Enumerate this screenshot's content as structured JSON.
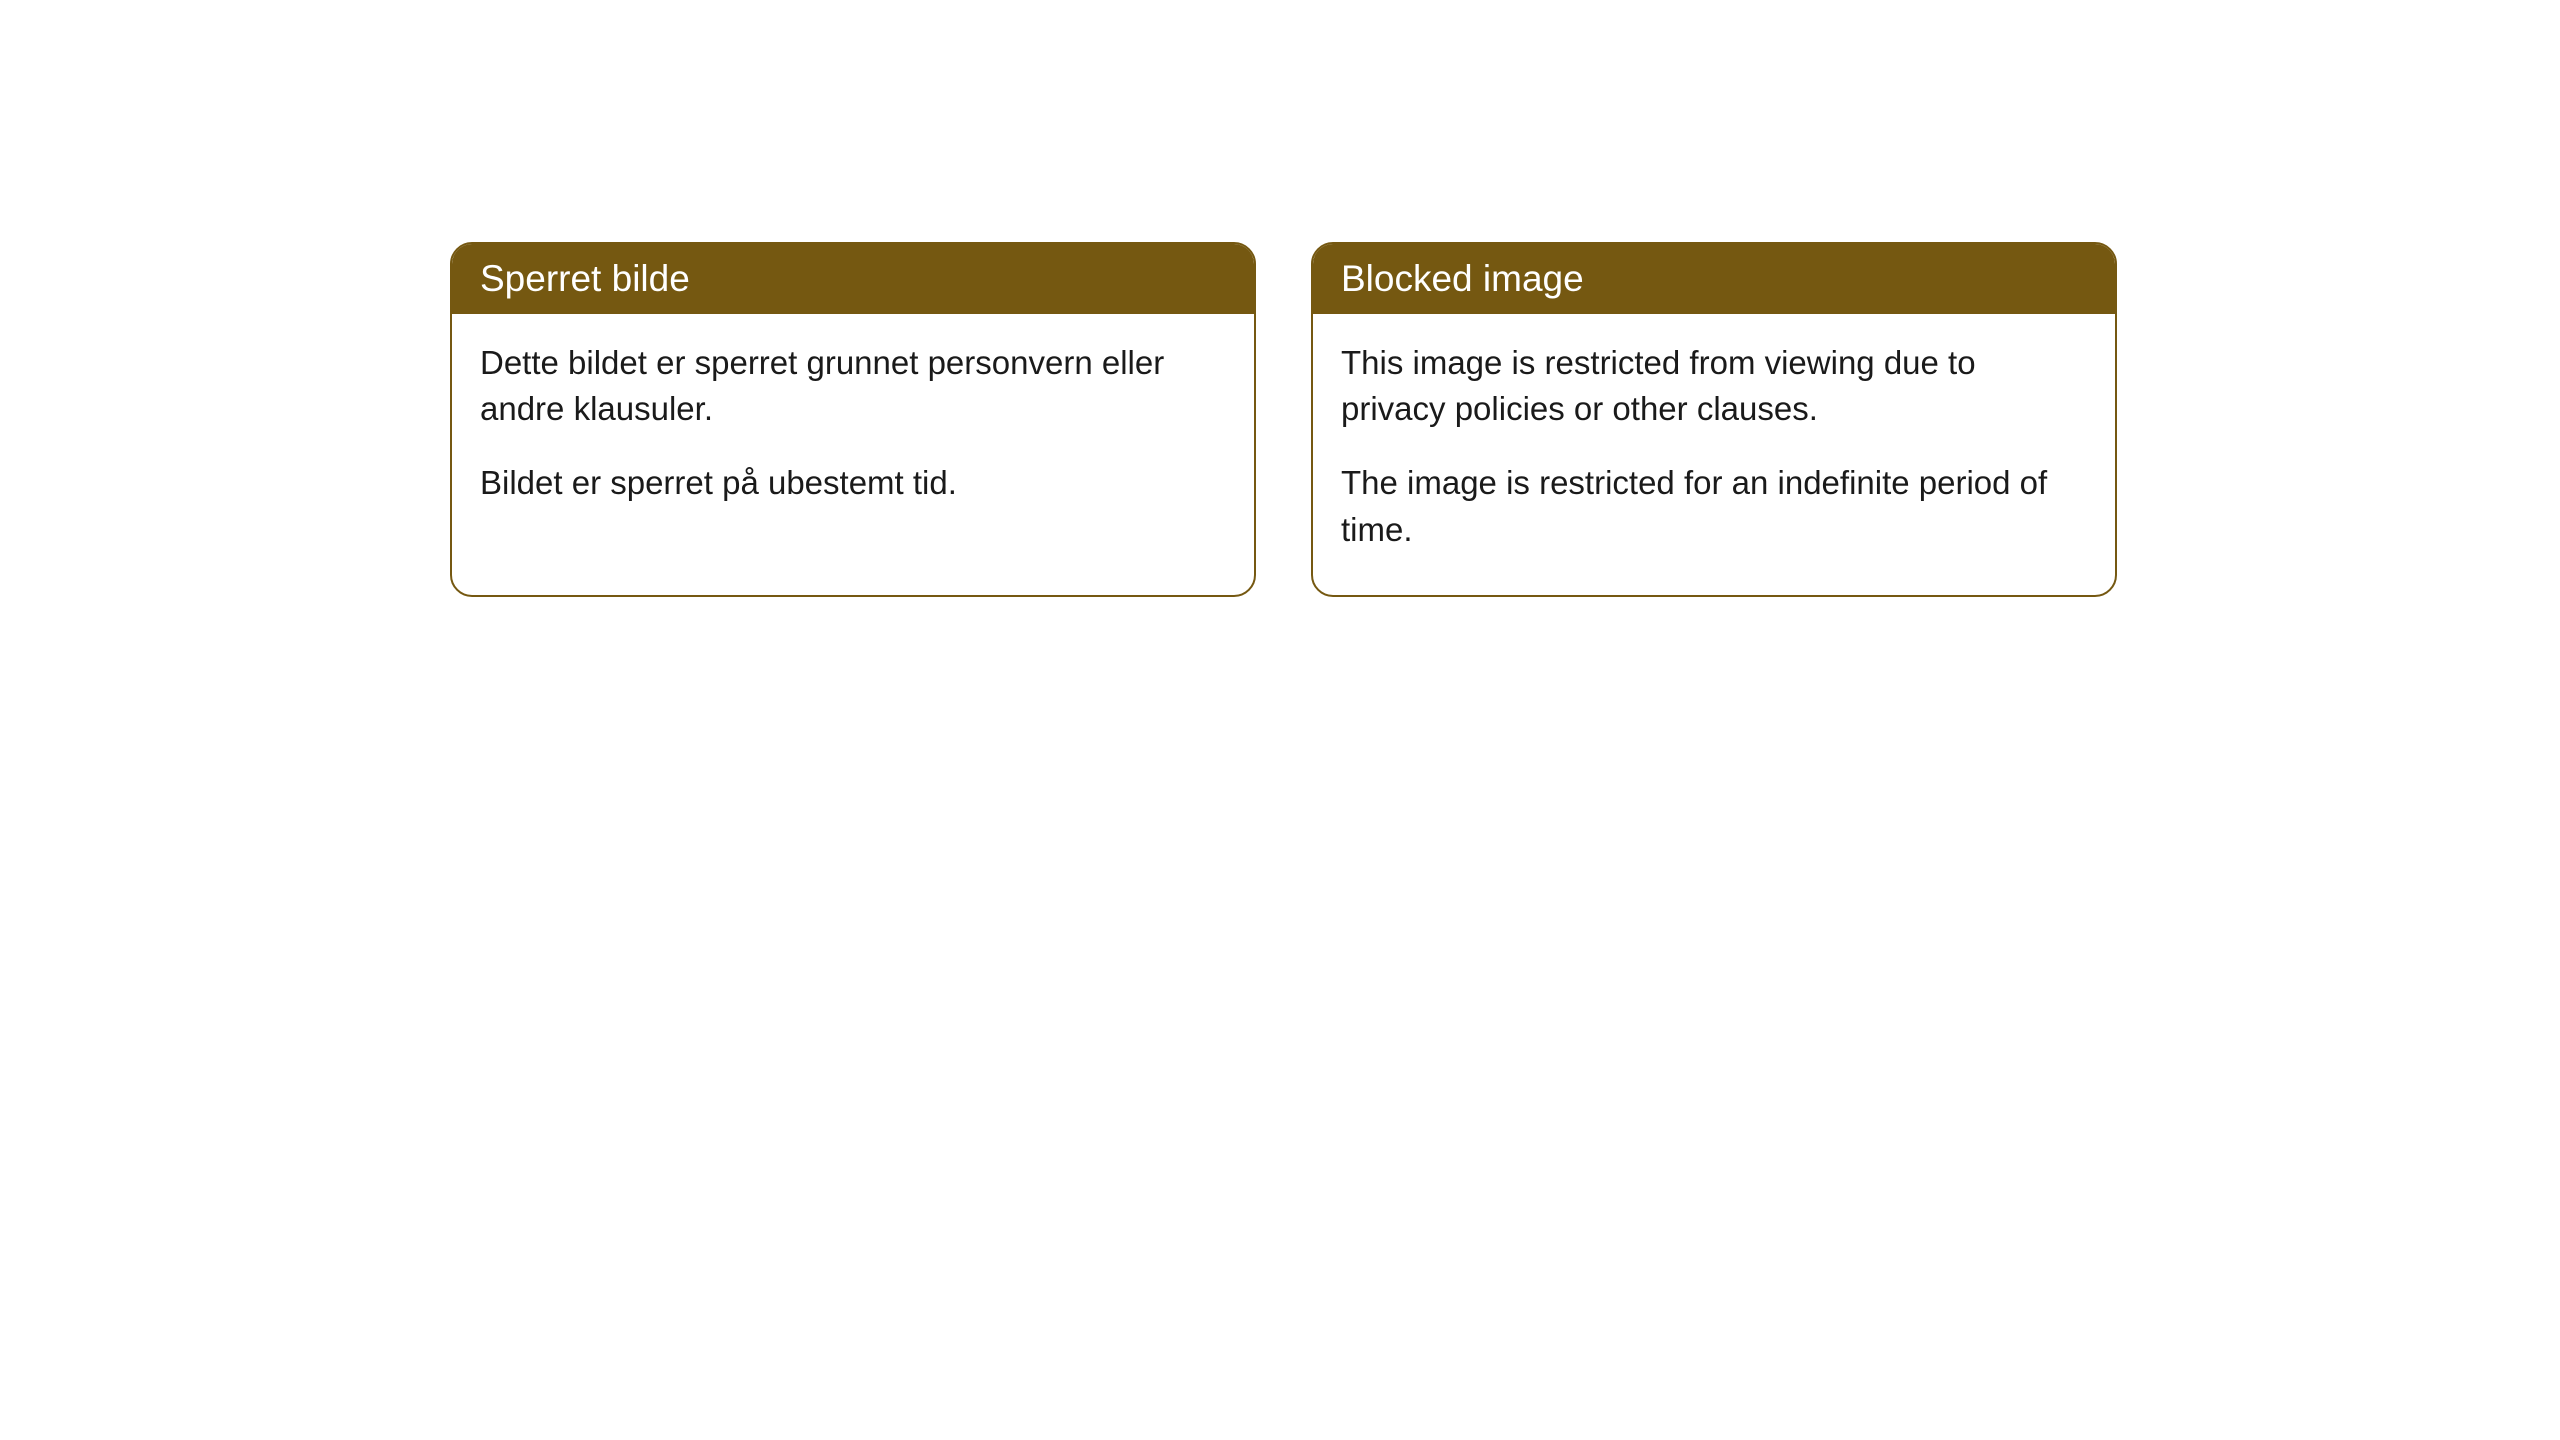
{
  "cards": [
    {
      "title": "Sperret bilde",
      "paragraph1": "Dette bildet er sperret grunnet personvern eller andre klausuler.",
      "paragraph2": "Bildet er sperret på ubestemt tid."
    },
    {
      "title": "Blocked image",
      "paragraph1": "This image is restricted from viewing due to privacy policies or other clauses.",
      "paragraph2": "The image is restricted for an indefinite period of time."
    }
  ],
  "style": {
    "header_bg_color": "#755811",
    "header_text_color": "#ffffff",
    "border_color": "#755811",
    "body_text_color": "#1a1a1a",
    "background_color": "#ffffff",
    "border_radius": 22,
    "title_fontsize": 37,
    "body_fontsize": 33
  }
}
